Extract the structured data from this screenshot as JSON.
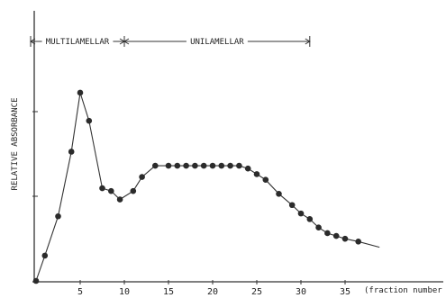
{
  "chart_data": {
    "type": "line",
    "title": "",
    "xlabel": "(fraction number",
    "ylabel": "RELATIVE ABSORBANCE",
    "xlim": [
      0,
      39
    ],
    "ylim": [
      0,
      1.0
    ],
    "x_ticks": [
      5,
      10,
      15,
      20,
      25,
      30,
      35
    ],
    "x_tick_labels": [
      "5",
      "10",
      "15",
      "20",
      "25",
      "30",
      "35"
    ],
    "grid": false,
    "series": [
      {
        "x": [
          0,
          1,
          2.5,
          4,
          5,
          6,
          7.5,
          8.5,
          9.5,
          11,
          12,
          13.5,
          15,
          16,
          17,
          18,
          19,
          20,
          21,
          22,
          23,
          24,
          25,
          26,
          27.5,
          29,
          30,
          31,
          32,
          33,
          34,
          35,
          36.5
        ],
        "y": [
          0.0,
          0.09,
          0.23,
          0.46,
          0.67,
          0.57,
          0.33,
          0.32,
          0.29,
          0.32,
          0.37,
          0.41,
          0.41,
          0.41,
          0.41,
          0.41,
          0.41,
          0.41,
          0.41,
          0.41,
          0.41,
          0.4,
          0.38,
          0.36,
          0.31,
          0.27,
          0.24,
          0.22,
          0.19,
          0.17,
          0.16,
          0.15,
          0.14
        ]
      }
    ],
    "regions": [
      {
        "label": "MULTILAMELLAR",
        "x_start": 0,
        "x_end": 10
      },
      {
        "label": "UNILAMELLAR",
        "x_start": 10,
        "x_end": 31
      }
    ]
  }
}
